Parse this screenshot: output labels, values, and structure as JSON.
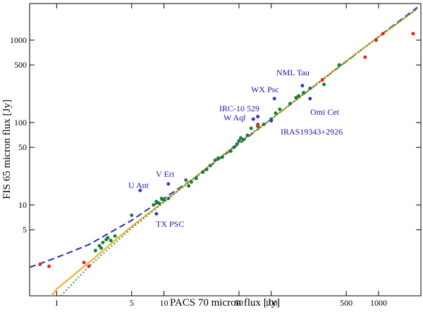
{
  "chart_data": {
    "type": "scatter",
    "x_label": "PACS 70 micron flux [Jy]",
    "y_label": "FIS 65 micron flux [Jy]",
    "xscale": "log",
    "yscale": "log",
    "xlim": [
      0.56,
      2480
    ],
    "ylim": [
      0.79,
      2780
    ],
    "xticks": [
      1,
      5,
      10,
      50,
      100,
      500,
      1000
    ],
    "yticks": [
      5,
      10,
      50,
      100,
      500,
      1000
    ],
    "series": [
      {
        "name": "green",
        "color": "#1b7a3e",
        "x": [
          2.3,
          2.5,
          2.6,
          2.7,
          2.9,
          3.0,
          3.2,
          3.5,
          5,
          8,
          8.5,
          9,
          9.5,
          10,
          11,
          16,
          17,
          18,
          20,
          23,
          25,
          27,
          30,
          32,
          35,
          42,
          45,
          48,
          50,
          52,
          55,
          60,
          65,
          75,
          85,
          100,
          110,
          120,
          150,
          170,
          180,
          200,
          230,
          310,
          430
        ],
        "values": [
          2.8,
          3.2,
          3.0,
          3.5,
          3.8,
          4.0,
          3.7,
          4.2,
          7.5,
          10,
          11,
          10.5,
          12,
          11.5,
          12,
          20,
          17,
          19,
          21,
          25,
          27,
          30,
          35,
          37,
          38,
          45,
          50,
          55,
          60,
          65,
          62,
          70,
          85,
          90,
          95,
          110,
          130,
          145,
          170,
          200,
          210,
          230,
          260,
          290,
          500
        ]
      },
      {
        "name": "red",
        "color": "#e32222",
        "x": [
          0.7,
          0.85,
          1.8,
          2.0,
          75,
          300,
          750,
          950,
          1100,
          2100
        ],
        "values": [
          1.9,
          1.8,
          2.0,
          1.8,
          95,
          330,
          620,
          1000,
          1200,
          1200
        ]
      },
      {
        "name": "blue",
        "color": "#3434d4",
        "x": [
          6,
          11,
          8.5,
          68,
          75,
          100,
          107,
          195,
          230
        ],
        "values": [
          15,
          18,
          7.8,
          110,
          118,
          105,
          195,
          280,
          195
        ]
      }
    ],
    "curves": [
      {
        "name": "blue-dashed",
        "color": "#1f2fb8",
        "dash": "9,5",
        "x": [
          0.56,
          1,
          2,
          5,
          10,
          20,
          50,
          100,
          300,
          1000,
          2300
        ],
        "values": [
          1.75,
          2.3,
          3.3,
          6.5,
          12,
          22,
          55,
          110,
          330,
          1100,
          2500
        ]
      },
      {
        "name": "orange",
        "color": "#f5a623",
        "dash": "",
        "x": [
          0.9,
          1,
          2,
          5,
          10,
          50,
          100,
          500,
          2300
        ],
        "values": [
          0.79,
          0.95,
          2.0,
          5.5,
          11,
          57,
          110,
          560,
          2400
        ]
      },
      {
        "name": "green-dotted",
        "color": "#2e9a3e",
        "dash": "2,3",
        "x": [
          1.1,
          2,
          5,
          10,
          50,
          100,
          1000,
          2300
        ],
        "values": [
          0.79,
          1.8,
          5.2,
          10.8,
          57,
          110,
          1100,
          2400
        ]
      }
    ],
    "annotations": [
      "NML Tau",
      "WX Psc",
      "IRC-10 529",
      "W Aql",
      "Omi Cet",
      "IRAS19343+2926",
      "U Ant",
      "V Eri",
      "TX PSC"
    ]
  }
}
